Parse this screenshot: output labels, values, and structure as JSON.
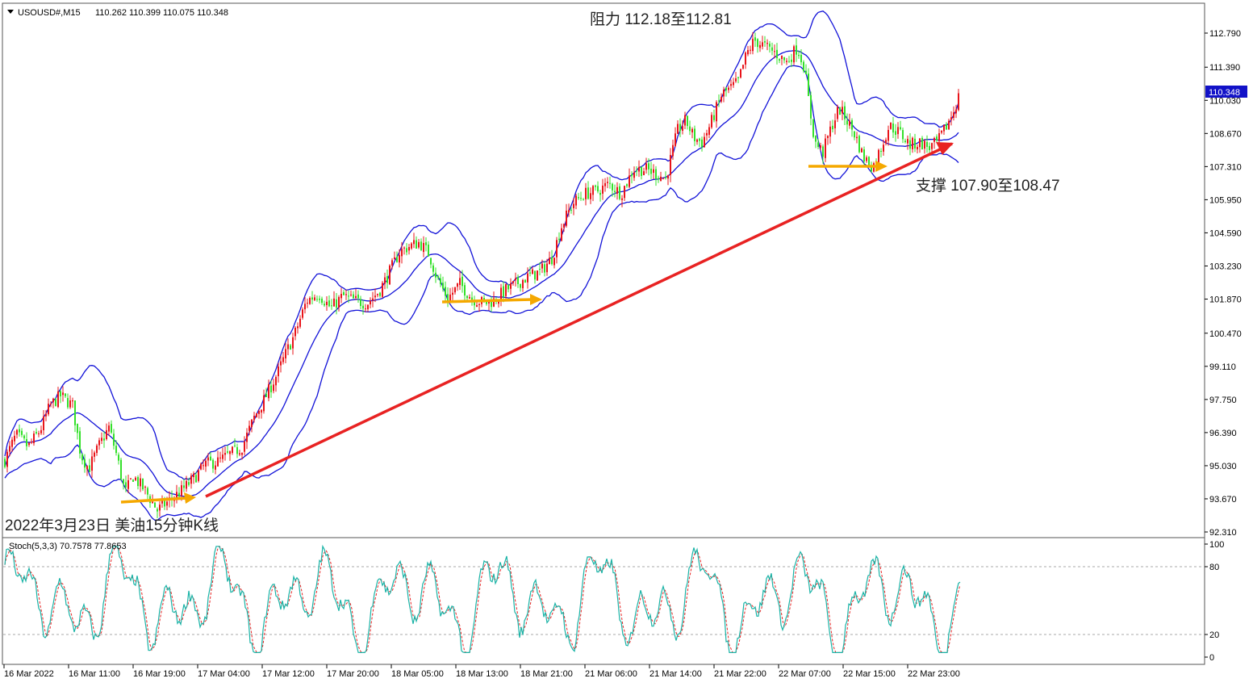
{
  "header": {
    "symbol": "USOUSD#,M15",
    "ohlc": "110.262 110.399 110.075 110.348"
  },
  "colors": {
    "bull": "#e8141a",
    "bear": "#33e02a",
    "band": "#1212d8",
    "trend": "#e82222",
    "arrow": "#f5a800",
    "stoch_main": "#19b3a6",
    "stoch_signal": "#e82222",
    "price_tag": "#1212c8"
  },
  "annotations": {
    "resistance": "阻力 112.18至112.81",
    "support": "支撑 107.90至108.47",
    "caption": "2022年3月23日 美油15分钟K线"
  },
  "price_axis": {
    "ticks": [
      "112.790",
      "111.390",
      "110.030",
      "108.670",
      "107.310",
      "105.950",
      "104.590",
      "103.230",
      "101.870",
      "100.470",
      "99.110",
      "97.750",
      "96.390",
      "95.030",
      "93.670",
      "92.310"
    ],
    "current_price": "110.348"
  },
  "stoch": {
    "label": "Stoch(5,3,3) 70.7578 77.8653",
    "levels": [
      "100",
      "80",
      "20",
      "0"
    ]
  },
  "time_axis": {
    "labels": [
      "16 Mar 2022",
      "16 Mar 11:00",
      "16 Mar 19:00",
      "17 Mar 04:00",
      "17 Mar 12:00",
      "17 Mar 20:00",
      "18 Mar 05:00",
      "18 Mar 13:00",
      "18 Mar 21:00",
      "21 Mar 06:00",
      "21 Mar 14:00",
      "21 Mar 22:00",
      "22 Mar 07:00",
      "22 Mar 15:00",
      "22 Mar 23:00"
    ]
  },
  "chart_data": {
    "type": "candlestick",
    "price_range": [
      92.31,
      113.5
    ],
    "stoch_range": [
      0,
      100
    ],
    "close_path": [
      [
        0,
        94.8
      ],
      [
        20,
        96.3
      ],
      [
        35,
        95.8
      ],
      [
        50,
        96.5
      ],
      [
        62,
        97.5
      ],
      [
        75,
        97.9
      ],
      [
        90,
        97.5
      ],
      [
        100,
        95.5
      ],
      [
        110,
        94.9
      ],
      [
        122,
        95.8
      ],
      [
        135,
        96.6
      ],
      [
        145,
        95.4
      ],
      [
        155,
        93.9
      ],
      [
        165,
        94.6
      ],
      [
        180,
        94.0
      ],
      [
        195,
        93.2
      ],
      [
        210,
        93.6
      ],
      [
        225,
        94.0
      ],
      [
        240,
        94.5
      ],
      [
        255,
        95.1
      ],
      [
        270,
        95.2
      ],
      [
        285,
        95.5
      ],
      [
        300,
        95.8
      ],
      [
        315,
        97.0
      ],
      [
        330,
        97.9
      ],
      [
        345,
        98.9
      ],
      [
        355,
        99.7
      ],
      [
        365,
        100.4
      ],
      [
        380,
        101.8
      ],
      [
        395,
        102.1
      ],
      [
        410,
        101.5
      ],
      [
        425,
        102.0
      ],
      [
        440,
        101.8
      ],
      [
        455,
        101.7
      ],
      [
        470,
        102.2
      ],
      [
        480,
        102.8
      ],
      [
        495,
        103.8
      ],
      [
        505,
        104.0
      ],
      [
        520,
        104.2
      ],
      [
        532,
        103.7
      ],
      [
        542,
        102.7
      ],
      [
        555,
        101.9
      ],
      [
        570,
        102.5
      ],
      [
        585,
        101.9
      ],
      [
        600,
        101.7
      ],
      [
        612,
        101.8
      ],
      [
        625,
        102.2
      ],
      [
        640,
        102.5
      ],
      [
        655,
        102.8
      ],
      [
        670,
        103.0
      ],
      [
        685,
        103.6
      ],
      [
        695,
        104.8
      ],
      [
        710,
        105.8
      ],
      [
        725,
        106.2
      ],
      [
        740,
        106.3
      ],
      [
        755,
        106.6
      ],
      [
        770,
        106.2
      ],
      [
        785,
        107.2
      ],
      [
        800,
        107.2
      ],
      [
        815,
        107.0
      ],
      [
        825,
        106.8
      ],
      [
        840,
        108.8
      ],
      [
        850,
        109.2
      ],
      [
        860,
        108.5
      ],
      [
        870,
        108.3
      ],
      [
        880,
        109.0
      ],
      [
        895,
        110.3
      ],
      [
        905,
        110.5
      ],
      [
        915,
        110.8
      ],
      [
        925,
        111.9
      ],
      [
        935,
        112.5
      ],
      [
        945,
        112.3
      ],
      [
        960,
        112.0
      ],
      [
        975,
        111.6
      ],
      [
        988,
        112.2
      ],
      [
        997,
        111.4
      ],
      [
        1003,
        109.8
      ],
      [
        1010,
        108.3
      ],
      [
        1020,
        107.9
      ],
      [
        1030,
        108.9
      ],
      [
        1040,
        109.7
      ],
      [
        1050,
        109.2
      ],
      [
        1060,
        108.6
      ],
      [
        1070,
        107.7
      ],
      [
        1082,
        107.3
      ],
      [
        1092,
        108.1
      ],
      [
        1102,
        109.0
      ],
      [
        1115,
        108.7
      ],
      [
        1128,
        108.2
      ],
      [
        1140,
        108.3
      ],
      [
        1152,
        108.1
      ],
      [
        1162,
        108.3
      ],
      [
        1172,
        108.9
      ],
      [
        1182,
        109.6
      ],
      [
        1190,
        110.35
      ]
    ]
  }
}
